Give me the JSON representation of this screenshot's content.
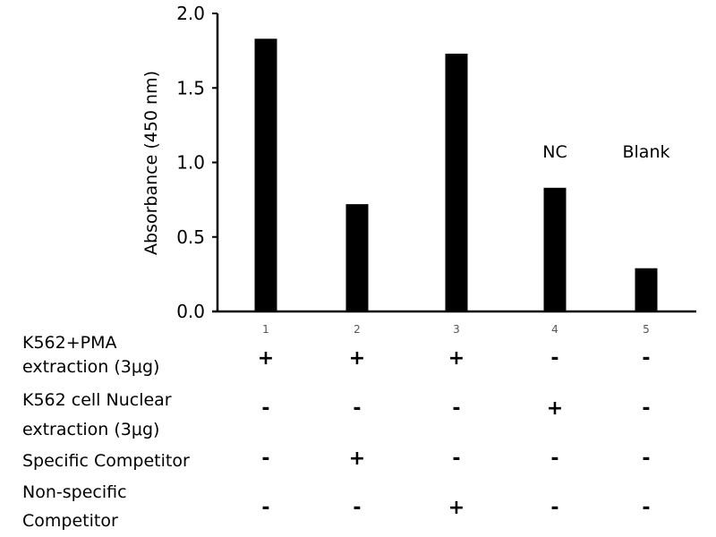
{
  "chart_data": {
    "type": "bar",
    "ylabel": "Absorbance (450 nm)",
    "xlabel": "",
    "ylim": [
      0,
      2.0
    ],
    "yticks": [
      "0.0",
      "0.5",
      "1.0",
      "1.5",
      "2.0"
    ],
    "categories": [
      "1",
      "2",
      "3",
      "4",
      "5"
    ],
    "values": [
      1.83,
      0.72,
      1.73,
      0.83,
      0.29
    ],
    "annotations": [
      "",
      "",
      "",
      "NC",
      "Blank"
    ],
    "bar_color": "#000000",
    "grid": false
  },
  "conditions": [
    {
      "label": [
        "K562+PMA",
        "extraction (3μg)"
      ],
      "signs": [
        "+",
        "+",
        "+",
        "-",
        "-"
      ]
    },
    {
      "label": [
        "K562 cell Nuclear",
        "extraction (3μg)"
      ],
      "signs": [
        "-",
        "-",
        "-",
        "+",
        "-"
      ]
    },
    {
      "label": [
        "Specific Competitor"
      ],
      "signs": [
        "-",
        "+",
        "-",
        "-",
        "-"
      ]
    },
    {
      "label": [
        "Non-specific",
        "Competitor"
      ],
      "signs": [
        "-",
        "-",
        "+",
        "-",
        "-"
      ]
    }
  ]
}
